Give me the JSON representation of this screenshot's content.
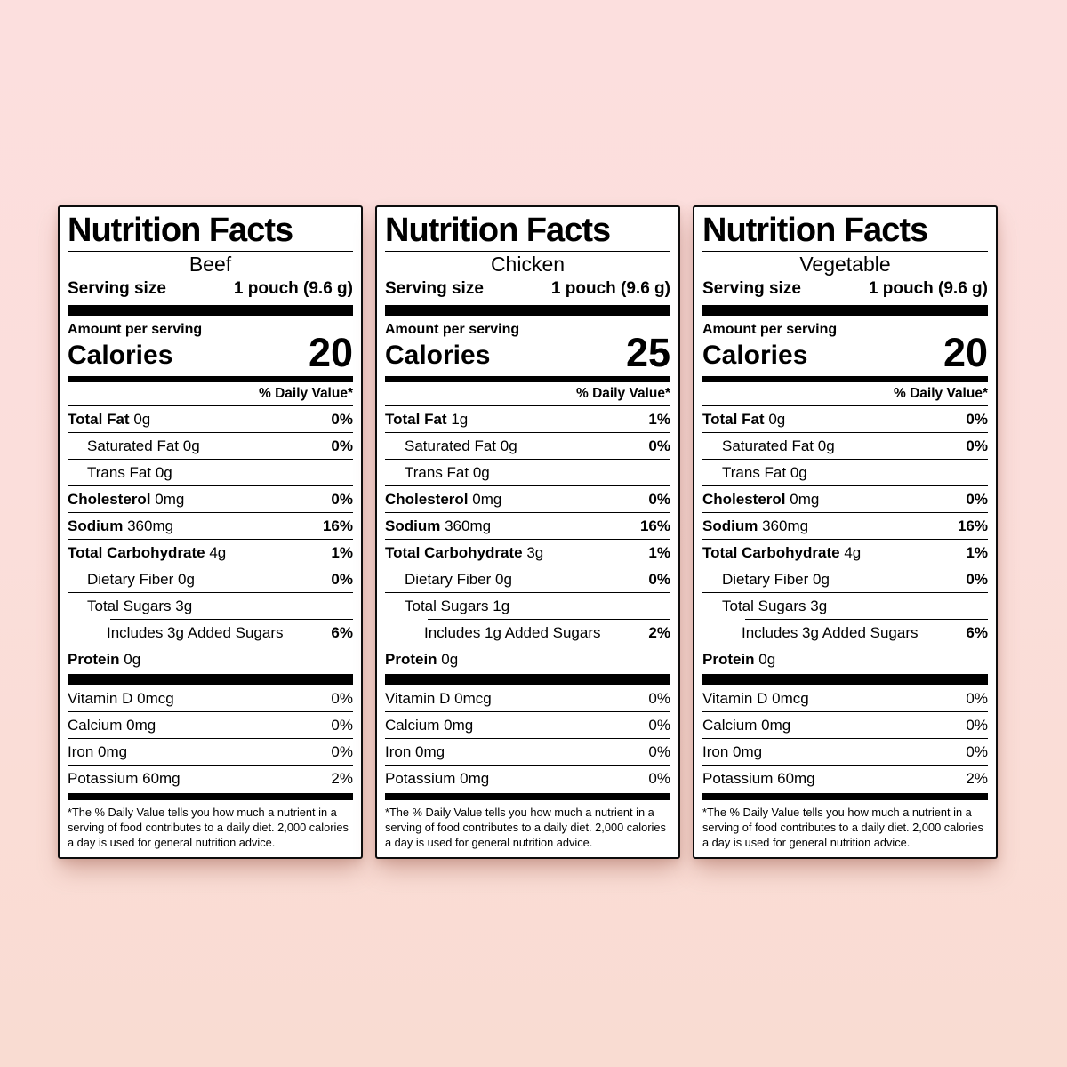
{
  "page_background_top": "#fcdfde",
  "page_background_bottom": "#f9dcd2",
  "label_paper_color": "#ffffff",
  "label_text_color": "#000000",
  "labels": [
    {
      "title": "Nutrition Facts",
      "variety": "Beef",
      "serving_size_label": "Serving size",
      "serving_size_value": "1 pouch (9.6 g)",
      "amount_per_serving": "Amount per serving",
      "calories_label": "Calories",
      "calories_value": "20",
      "daily_value_header": "% Daily Value*",
      "nutrients": [
        {
          "name": "Total Fat",
          "amount": "0g",
          "dv": "0%",
          "major": true,
          "level": 0
        },
        {
          "name": "Saturated Fat",
          "amount": "0g",
          "dv": "0%",
          "major": false,
          "level": 1
        },
        {
          "name": "Trans Fat",
          "amount": "0g",
          "dv": "",
          "major": false,
          "level": 1
        },
        {
          "name": "Cholesterol",
          "amount": "0mg",
          "dv": "0%",
          "major": true,
          "level": 0
        },
        {
          "name": "Sodium",
          "amount": "360mg",
          "dv": "16%",
          "major": true,
          "level": 0
        },
        {
          "name": "Total Carbohydrate",
          "amount": "4g",
          "dv": "1%",
          "major": true,
          "level": 0
        },
        {
          "name": "Dietary Fiber",
          "amount": "0g",
          "dv": "0%",
          "major": false,
          "level": 1
        },
        {
          "name": "Total Sugars",
          "amount": "3g",
          "dv": "",
          "major": false,
          "level": 1
        },
        {
          "name": "Includes 3g Added Sugars",
          "amount": "",
          "dv": "6%",
          "major": false,
          "level": 2
        },
        {
          "name": "Protein",
          "amount": "0g",
          "dv": "",
          "major": true,
          "level": 0
        }
      ],
      "vitamins": [
        {
          "name": "Vitamin D",
          "amount": "0mcg",
          "dv": "0%"
        },
        {
          "name": "Calcium",
          "amount": "0mg",
          "dv": "0%"
        },
        {
          "name": "Iron",
          "amount": "0mg",
          "dv": "0%"
        },
        {
          "name": "Potassium",
          "amount": "60mg",
          "dv": "2%"
        }
      ],
      "footnote": "*The % Daily Value tells you how much a nutrient in a serving of food contributes to a daily diet. 2,000 calories a day is used for general nutrition advice."
    },
    {
      "title": "Nutrition Facts",
      "variety": "Chicken",
      "serving_size_label": "Serving size",
      "serving_size_value": "1 pouch (9.6 g)",
      "amount_per_serving": "Amount per serving",
      "calories_label": "Calories",
      "calories_value": "25",
      "daily_value_header": "% Daily Value*",
      "nutrients": [
        {
          "name": "Total Fat",
          "amount": "1g",
          "dv": "1%",
          "major": true,
          "level": 0
        },
        {
          "name": "Saturated Fat",
          "amount": "0g",
          "dv": "0%",
          "major": false,
          "level": 1
        },
        {
          "name": "Trans Fat",
          "amount": "0g",
          "dv": "",
          "major": false,
          "level": 1
        },
        {
          "name": "Cholesterol",
          "amount": "0mg",
          "dv": "0%",
          "major": true,
          "level": 0
        },
        {
          "name": "Sodium",
          "amount": "360mg",
          "dv": "16%",
          "major": true,
          "level": 0
        },
        {
          "name": "Total Carbohydrate",
          "amount": "3g",
          "dv": "1%",
          "major": true,
          "level": 0
        },
        {
          "name": "Dietary Fiber",
          "amount": "0g",
          "dv": "0%",
          "major": false,
          "level": 1
        },
        {
          "name": "Total Sugars",
          "amount": "1g",
          "dv": "",
          "major": false,
          "level": 1
        },
        {
          "name": "Includes 1g Added Sugars",
          "amount": "",
          "dv": "2%",
          "major": false,
          "level": 2
        },
        {
          "name": "Protein",
          "amount": "0g",
          "dv": "",
          "major": true,
          "level": 0
        }
      ],
      "vitamins": [
        {
          "name": "Vitamin D",
          "amount": "0mcg",
          "dv": "0%"
        },
        {
          "name": "Calcium",
          "amount": "0mg",
          "dv": "0%"
        },
        {
          "name": "Iron",
          "amount": "0mg",
          "dv": "0%"
        },
        {
          "name": "Potassium",
          "amount": "0mg",
          "dv": "0%"
        }
      ],
      "footnote": "*The % Daily Value tells you how much a nutrient in a serving of food contributes to a daily diet. 2,000 calories a day is used for general nutrition advice."
    },
    {
      "title": "Nutrition Facts",
      "variety": "Vegetable",
      "serving_size_label": "Serving size",
      "serving_size_value": "1 pouch (9.6 g)",
      "amount_per_serving": "Amount per serving",
      "calories_label": "Calories",
      "calories_value": "20",
      "daily_value_header": "% Daily Value*",
      "nutrients": [
        {
          "name": "Total Fat",
          "amount": "0g",
          "dv": "0%",
          "major": true,
          "level": 0
        },
        {
          "name": "Saturated Fat",
          "amount": "0g",
          "dv": "0%",
          "major": false,
          "level": 1
        },
        {
          "name": "Trans Fat",
          "amount": "0g",
          "dv": "",
          "major": false,
          "level": 1
        },
        {
          "name": "Cholesterol",
          "amount": "0mg",
          "dv": "0%",
          "major": true,
          "level": 0
        },
        {
          "name": "Sodium",
          "amount": "360mg",
          "dv": "16%",
          "major": true,
          "level": 0
        },
        {
          "name": "Total Carbohydrate",
          "amount": "4g",
          "dv": "1%",
          "major": true,
          "level": 0
        },
        {
          "name": "Dietary Fiber",
          "amount": "0g",
          "dv": "0%",
          "major": false,
          "level": 1
        },
        {
          "name": "Total Sugars",
          "amount": "3g",
          "dv": "",
          "major": false,
          "level": 1
        },
        {
          "name": "Includes 3g Added Sugars",
          "amount": "",
          "dv": "6%",
          "major": false,
          "level": 2
        },
        {
          "name": "Protein",
          "amount": "0g",
          "dv": "",
          "major": true,
          "level": 0
        }
      ],
      "vitamins": [
        {
          "name": "Vitamin D",
          "amount": "0mcg",
          "dv": "0%"
        },
        {
          "name": "Calcium",
          "amount": "0mg",
          "dv": "0%"
        },
        {
          "name": "Iron",
          "amount": "0mg",
          "dv": "0%"
        },
        {
          "name": "Potassium",
          "amount": "60mg",
          "dv": "2%"
        }
      ],
      "footnote": "*The % Daily Value tells you how much a nutrient in a serving of food contributes to a daily diet. 2,000 calories a day is used for general nutrition advice."
    }
  ]
}
